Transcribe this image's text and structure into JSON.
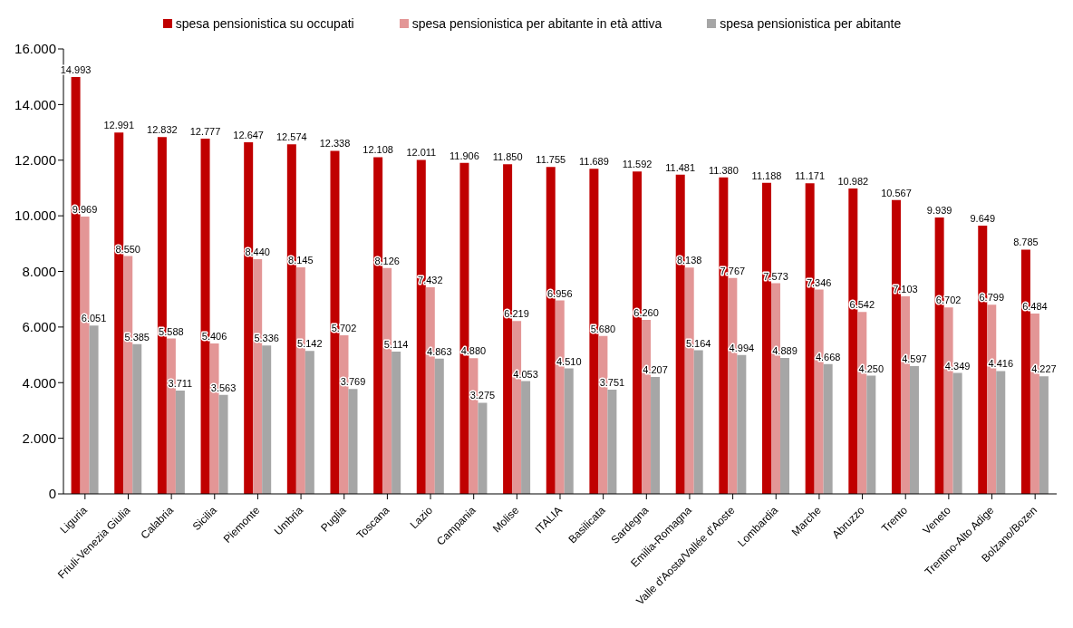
{
  "chart_data": {
    "type": "bar",
    "categories": [
      "Liguria",
      "Friuli-Venezia Giulia",
      "Calabria",
      "Sicilia",
      "Piemonte",
      "Umbria",
      "Puglia",
      "Toscana",
      "Lazio",
      "Campania",
      "Molise",
      "ITALIA",
      "Basilicata",
      "Sardegna",
      "Emilia-Romagna",
      "Valle d'Aosta/Vallée d'Aoste",
      "Lombardia",
      "Marche",
      "Abruzzo",
      "Trento",
      "Veneto",
      "Trentino-Alto Adige",
      "Bolzano/Bozen"
    ],
    "series": [
      {
        "name": "spesa pensionistica su occupati",
        "color": "#c00000",
        "values": [
          14993,
          12991,
          12832,
          12777,
          12647,
          12574,
          12338,
          12108,
          12011,
          11906,
          11850,
          11755,
          11689,
          11592,
          11481,
          11380,
          11188,
          11171,
          10982,
          10567,
          9939,
          9649,
          8785
        ],
        "value_labels": [
          "14.993",
          "12.991",
          "12.832",
          "12.777",
          "12.647",
          "12.574",
          "12.338",
          "12.108",
          "12.011",
          "11.906",
          "11.850",
          "11.755",
          "11.689",
          "11.592",
          "11.481",
          "11.380",
          "11.188",
          "11.171",
          "10.982",
          "10.567",
          "9.939",
          "9.649",
          "8.785"
        ]
      },
      {
        "name": "spesa pensionistica per abitante in età attiva",
        "color": "#e39696",
        "values": [
          9969,
          8550,
          5588,
          5406,
          8440,
          8145,
          5702,
          8126,
          7432,
          4880,
          6219,
          6956,
          5680,
          6260,
          8138,
          7767,
          7573,
          7346,
          6542,
          7103,
          6702,
          6799,
          6484
        ],
        "value_labels": [
          "9.969",
          "8.550",
          "5.588",
          "5.406",
          "8.440",
          "8.145",
          "5.702",
          "8.126",
          "7.432",
          "4.880",
          "6.219",
          "6.956",
          "5.680",
          "6.260",
          "8.138",
          "7.767",
          "7.573",
          "7.346",
          "6.542",
          "7.103",
          "6.702",
          "6.799",
          "6.484"
        ]
      },
      {
        "name": "spesa pensionistica per abitante",
        "color": "#a6a6a6",
        "values": [
          6051,
          5385,
          3711,
          3563,
          5336,
          5142,
          3769,
          5114,
          4863,
          3275,
          4053,
          4510,
          3751,
          4207,
          5164,
          4994,
          4889,
          4668,
          4250,
          4597,
          4349,
          4416,
          4227
        ],
        "value_labels": [
          "6.051",
          "5.385",
          "3.711",
          "3.563",
          "5.336",
          "5.142",
          "3.769",
          "5.114",
          "4.863",
          "3.275",
          "4.053",
          "4.510",
          "3.751",
          "4.207",
          "5.164",
          "4.994",
          "4.889",
          "4.668",
          "4.250",
          "4.597",
          "4.349",
          "4.416",
          "4.227"
        ]
      }
    ],
    "ylim": [
      0,
      16000
    ],
    "yticks": [
      {
        "value": 0,
        "label": "0"
      },
      {
        "value": 2000,
        "label": "2.000"
      },
      {
        "value": 4000,
        "label": "4.000"
      },
      {
        "value": 6000,
        "label": "6.000"
      },
      {
        "value": 8000,
        "label": "8.000"
      },
      {
        "value": 10000,
        "label": "10.000"
      },
      {
        "value": 12000,
        "label": "12.000"
      },
      {
        "value": 14000,
        "label": "14.000"
      },
      {
        "value": 16000,
        "label": "16.000"
      }
    ],
    "grid": false,
    "legend": "top"
  }
}
